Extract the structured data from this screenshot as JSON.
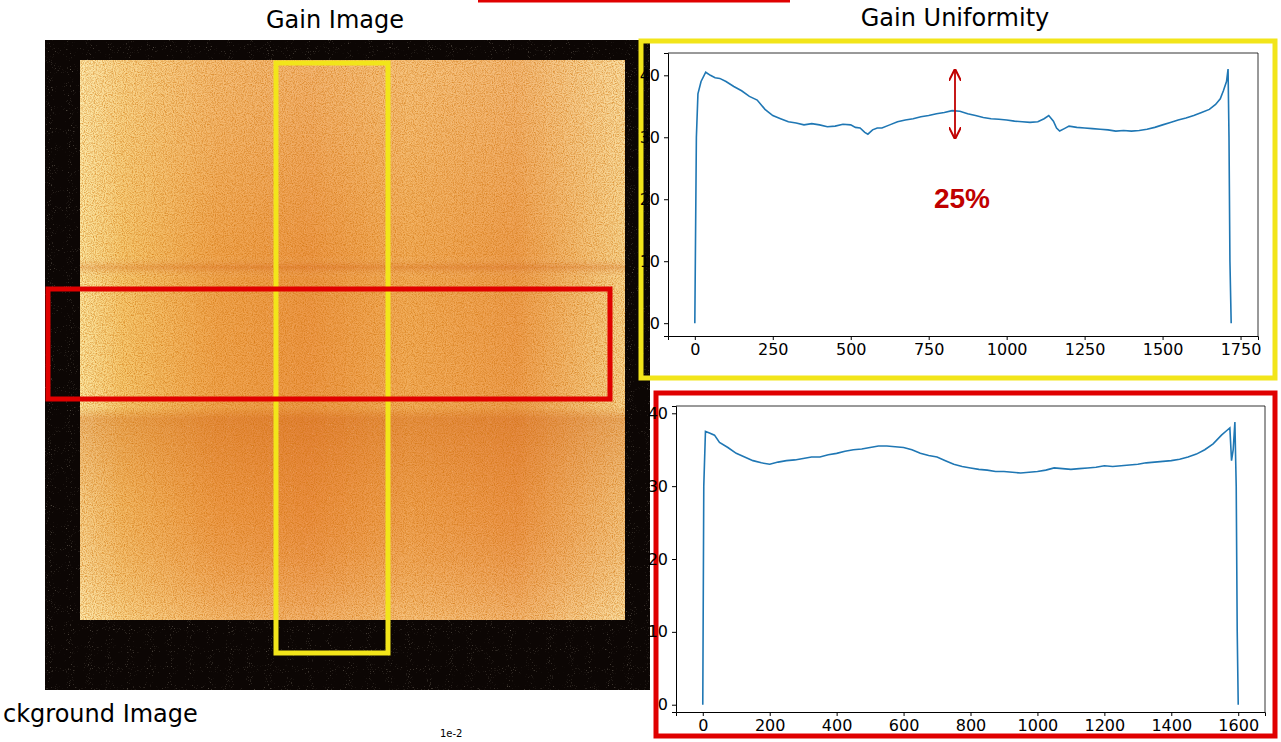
{
  "slide": {
    "image_title": "Gain Image",
    "uniformity_title": "Gain Uniformity",
    "background_title": "ckground Image",
    "scale_exponent": "1e-2"
  },
  "chart_data": [
    {
      "type": "line",
      "color": "#1f77b4",
      "annotations": [
        "25%"
      ],
      "x": [
        0,
        5,
        10,
        20,
        35,
        50,
        65,
        80,
        100,
        125,
        150,
        175,
        200,
        225,
        250,
        275,
        300,
        325,
        350,
        375,
        400,
        425,
        450,
        475,
        500,
        515,
        530,
        545,
        555,
        570,
        585,
        600,
        625,
        650,
        675,
        700,
        725,
        750,
        775,
        800,
        825,
        850,
        875,
        900,
        925,
        950,
        975,
        1000,
        1025,
        1050,
        1075,
        1100,
        1120,
        1135,
        1150,
        1160,
        1170,
        1185,
        1200,
        1225,
        1250,
        1275,
        1300,
        1325,
        1350,
        1375,
        1400,
        1425,
        1450,
        1475,
        1500,
        1525,
        1550,
        1575,
        1600,
        1625,
        1650,
        1670,
        1685,
        1695,
        1705,
        1710,
        1713,
        1716,
        1720
      ],
      "values": [
        0,
        30,
        37,
        39,
        40.5,
        40,
        39.6,
        39.5,
        39,
        38.2,
        37.5,
        36.6,
        36,
        34.5,
        33.5,
        33,
        32.5,
        32.3,
        32,
        32.2,
        32,
        31.7,
        31.8,
        32.1,
        32,
        31.6,
        31.5,
        30.8,
        30.5,
        31.2,
        31.5,
        31.5,
        32,
        32.5,
        32.8,
        33,
        33.3,
        33.5,
        33.8,
        34,
        34.3,
        34.2,
        33.8,
        33.5,
        33.2,
        33,
        32.9,
        32.8,
        32.6,
        32.5,
        32.4,
        32.5,
        33,
        33.5,
        32.6,
        31.5,
        31,
        31.4,
        31.8,
        31.6,
        31.5,
        31.4,
        31.3,
        31.2,
        31,
        31.1,
        31,
        31.1,
        31.3,
        31.6,
        32,
        32.4,
        32.8,
        33.1,
        33.5,
        34,
        34.5,
        35.3,
        36.2,
        37.5,
        39,
        41,
        30,
        10,
        0
      ],
      "xlim": [
        -86,
        1806
      ],
      "ylim": [
        -2.07,
        43.6
      ],
      "xticks": [
        0,
        250,
        500,
        750,
        1000,
        1250,
        1500,
        1750
      ],
      "yticks": [
        0,
        10,
        20,
        30,
        40
      ]
    },
    {
      "type": "line",
      "color": "#1f77b4",
      "x": [
        0,
        3,
        8,
        20,
        35,
        50,
        75,
        100,
        125,
        150,
        175,
        200,
        225,
        250,
        275,
        300,
        325,
        350,
        375,
        400,
        425,
        450,
        475,
        500,
        525,
        550,
        575,
        600,
        625,
        650,
        675,
        700,
        725,
        750,
        775,
        800,
        825,
        850,
        875,
        900,
        925,
        950,
        975,
        1000,
        1025,
        1050,
        1075,
        1100,
        1125,
        1150,
        1175,
        1200,
        1225,
        1250,
        1275,
        1300,
        1325,
        1350,
        1375,
        1400,
        1425,
        1450,
        1475,
        1500,
        1525,
        1550,
        1565,
        1575,
        1580,
        1585,
        1590,
        1594,
        1597,
        1600
      ],
      "values": [
        0,
        30,
        37.5,
        37.3,
        37,
        36,
        35.3,
        34.5,
        34,
        33.5,
        33.2,
        33,
        33.3,
        33.5,
        33.6,
        33.8,
        34,
        34,
        34.3,
        34.5,
        34.8,
        35,
        35.1,
        35.3,
        35.5,
        35.5,
        35.4,
        35.3,
        35,
        34.5,
        34.2,
        34,
        33.5,
        33,
        32.7,
        32.5,
        32.3,
        32.2,
        32,
        32,
        31.9,
        31.8,
        31.9,
        32,
        32.2,
        32.5,
        32.4,
        32.3,
        32.4,
        32.5,
        32.6,
        32.8,
        32.7,
        32.8,
        32.9,
        33,
        33.2,
        33.3,
        33.4,
        33.5,
        33.7,
        34,
        34.4,
        35,
        35.8,
        37,
        37.6,
        38,
        33.5,
        35,
        38.8,
        30,
        10,
        0
      ],
      "xlim": [
        -80,
        1680
      ],
      "ylim": [
        -1,
        41
      ],
      "xticks": [
        0,
        200,
        400,
        600,
        800,
        1000,
        1200,
        1400,
        1600
      ],
      "yticks": [
        0,
        10,
        20,
        30,
        40
      ]
    }
  ]
}
